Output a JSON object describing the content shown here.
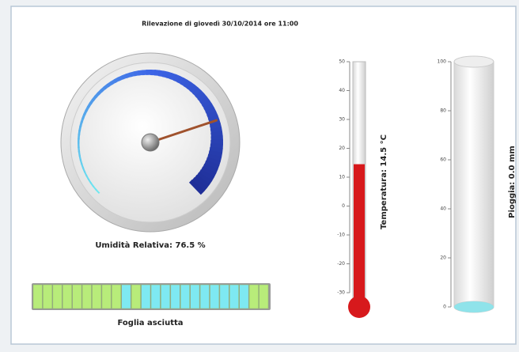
{
  "header": {
    "title": "Rilevazione di giovedì 30/10/2014 ore 11:00"
  },
  "leaf": {
    "label": "Foglia asciutta"
  },
  "chart_data": [
    {
      "type": "gauge",
      "label": "Umidità Relativa: 76.5 %",
      "value": 76.5,
      "ylim": [
        0,
        100
      ],
      "color": "#a0522d"
    },
    {
      "type": "thermometer",
      "label": "Temperatura: 14.5 °C",
      "value": 14.5,
      "ylim": [
        -30,
        50
      ],
      "yticks": [
        -30,
        -20,
        -10,
        0,
        10,
        20,
        30,
        40,
        50
      ],
      "color": "#d7191c"
    },
    {
      "type": "cylinder",
      "label": "Pioggia: 0.0 mm",
      "value": 0,
      "ylim": [
        0,
        100
      ],
      "yticks": [
        0,
        20,
        40,
        60,
        80,
        100
      ],
      "color": "#5fd0d8"
    }
  ]
}
